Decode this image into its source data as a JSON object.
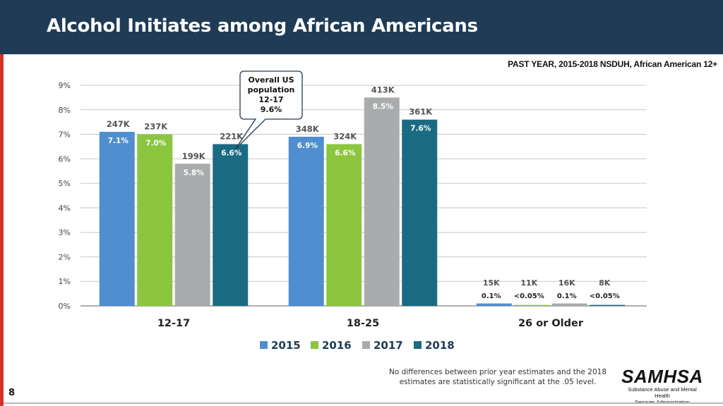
{
  "header": {
    "title": "Alcohol Initiates among African Americans"
  },
  "subtitle": "PAST YEAR, 2015-2018 NSDUH, African American 12+",
  "callout": {
    "lines": [
      "Overall US",
      "population",
      "12-17",
      "9.6%"
    ]
  },
  "chart_data": {
    "type": "bar",
    "title": "Alcohol Initiates among African Americans",
    "xlabel": "",
    "ylabel": "",
    "ylim": [
      0,
      9
    ],
    "yticks": [
      "0%",
      "1%",
      "2%",
      "3%",
      "4%",
      "5%",
      "6%",
      "7%",
      "8%",
      "9%"
    ],
    "categories": [
      "12-17",
      "18-25",
      "26 or Older"
    ],
    "legend_position": "bottom",
    "series": [
      {
        "name": "2015",
        "color": "#4f8fcf",
        "values": [
          7.1,
          6.9,
          0.1
        ],
        "pct_labels": [
          "7.1%",
          "6.9%",
          "0.1%"
        ],
        "count_labels": [
          "247K",
          "348K",
          "15K"
        ]
      },
      {
        "name": "2016",
        "color": "#8cc63f",
        "values": [
          7.0,
          6.6,
          0.04
        ],
        "pct_labels": [
          "7.0%",
          "6.6%",
          "<0.05%"
        ],
        "count_labels": [
          "237K",
          "324K",
          "11K"
        ]
      },
      {
        "name": "2017",
        "color": "#a9abad",
        "values": [
          5.8,
          8.5,
          0.1
        ],
        "pct_labels": [
          "5.8%",
          "8.5%",
          "0.1%"
        ],
        "count_labels": [
          "199K",
          "413K",
          "16K"
        ]
      },
      {
        "name": "2018",
        "color": "#1a6b82",
        "values": [
          6.6,
          7.6,
          0.04
        ],
        "pct_labels": [
          "6.6%",
          "7.6%",
          "<0.05%"
        ],
        "count_labels": [
          "221K",
          "361K",
          "8K"
        ]
      }
    ]
  },
  "footnote": "No differences between prior year estimates and the 2018 estimates are statistically significant at the .05 level.",
  "logo": {
    "name": "SAMHSA",
    "tagline_line1": "Substance Abuse and Mental Health",
    "tagline_line2": "Services Administration"
  },
  "page_number": "8"
}
